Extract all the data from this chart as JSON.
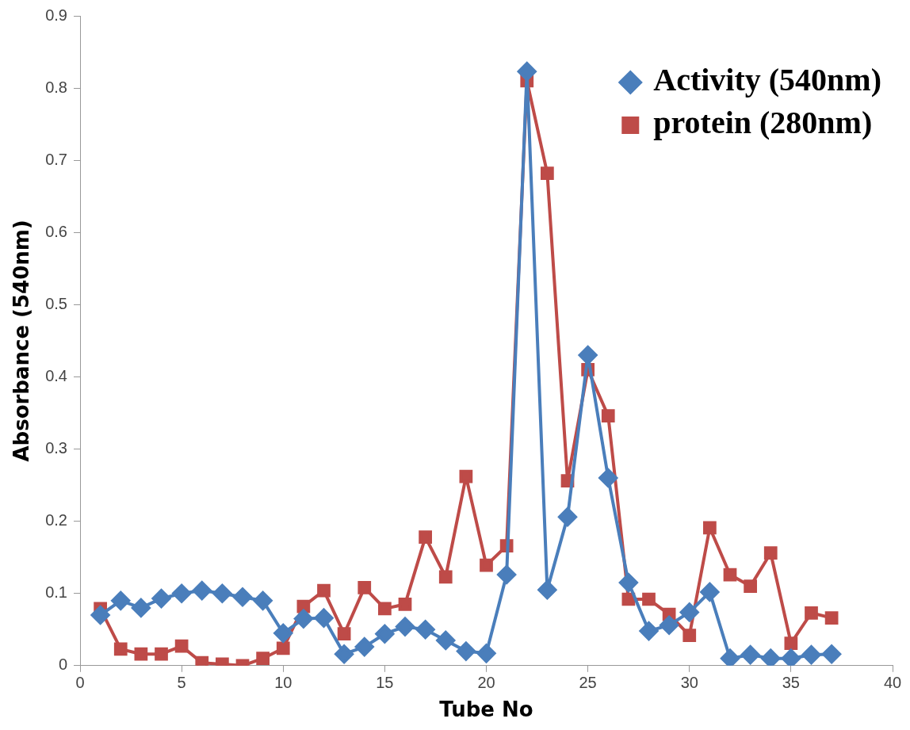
{
  "chart_data": {
    "type": "line",
    "xlabel": "Tube No",
    "ylabel": "Absorbance (540nm)",
    "x": [
      1,
      2,
      3,
      4,
      5,
      6,
      7,
      8,
      9,
      10,
      11,
      12,
      13,
      14,
      15,
      16,
      17,
      18,
      19,
      20,
      21,
      22,
      23,
      24,
      25,
      26,
      27,
      28,
      29,
      30,
      31,
      32,
      33,
      34,
      35,
      36,
      37
    ],
    "series": [
      {
        "name": "Activity (540nm)",
        "color": "#4a7ebb",
        "marker": "diamond",
        "values": [
          0.07,
          0.09,
          0.08,
          0.093,
          0.1,
          0.104,
          0.1,
          0.095,
          0.09,
          0.045,
          0.065,
          0.066,
          0.016,
          0.026,
          0.044,
          0.054,
          0.05,
          0.035,
          0.02,
          0.017,
          0.126,
          0.823,
          0.105,
          0.206,
          0.43,
          0.26,
          0.115,
          0.048,
          0.056,
          0.074,
          0.102,
          0.01,
          0.015,
          0.01,
          0.01,
          0.015,
          0.016
        ]
      },
      {
        "name": "protein (280nm)",
        "color": "#be4b48",
        "marker": "square",
        "values": [
          0.079,
          0.023,
          0.016,
          0.016,
          0.027,
          0.004,
          0.002,
          0,
          0.01,
          0.024,
          0.082,
          0.104,
          0.044,
          0.108,
          0.079,
          0.085,
          0.178,
          0.123,
          0.262,
          0.139,
          0.166,
          0.81,
          0.682,
          0.256,
          0.41,
          0.346,
          0.092,
          0.092,
          0.071,
          0.042,
          0.191,
          0.126,
          0.11,
          0.156,
          0.031,
          0.073,
          0.066
        ]
      }
    ],
    "xlim": [
      0,
      40
    ],
    "xticks": [
      0,
      5,
      10,
      15,
      20,
      25,
      30,
      35,
      40
    ],
    "ylim": [
      0,
      0.9
    ],
    "yticks": [
      0,
      0.1,
      0.2,
      0.3,
      0.4,
      0.5,
      0.6,
      0.7,
      0.8,
      0.9
    ],
    "grid": false,
    "legend": "top right",
    "line_style": "solid"
  }
}
